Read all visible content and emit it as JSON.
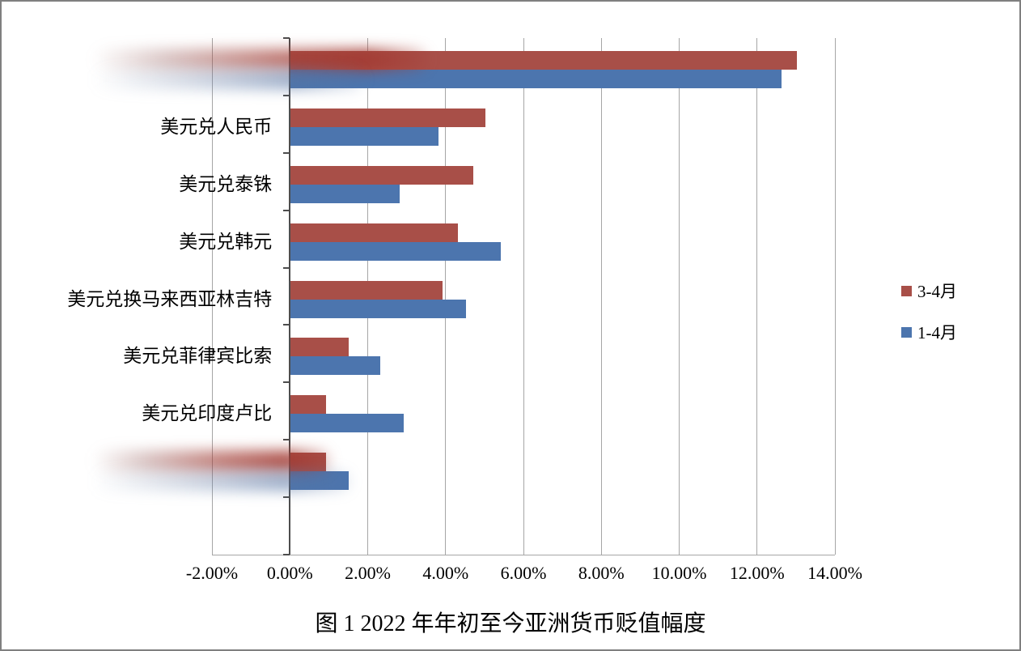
{
  "figure": {
    "caption": "图 1 2022 年年初至今亚洲货币贬值幅度"
  },
  "chart_data": {
    "type": "bar",
    "orientation": "horizontal",
    "title": "图 1 2022 年年初至今亚洲货币贬值幅度",
    "categories": [
      "",
      "美元兑人民币",
      "美元兑泰铢",
      "美元兑韩元",
      "美元兑换马来西亚林吉特",
      "美元兑菲律宾比索",
      "美元兑印度卢比",
      ""
    ],
    "redacted_rows": [
      0,
      7
    ],
    "series": [
      {
        "name": "3-4月",
        "color": "#a84f48",
        "values": [
          13.0,
          5.0,
          4.7,
          4.3,
          3.9,
          1.5,
          0.9,
          0.9
        ]
      },
      {
        "name": "1-4月",
        "color": "#4c75ae",
        "values": [
          12.6,
          3.8,
          2.8,
          5.4,
          4.5,
          2.3,
          2.9,
          1.5
        ]
      }
    ],
    "x_ticks": [
      "-2.00%",
      "0.00%",
      "2.00%",
      "4.00%",
      "6.00%",
      "8.00%",
      "10.00%",
      "12.00%",
      "14.00%"
    ],
    "x_min": -2,
    "x_max": 14,
    "unit": "%",
    "grid": true,
    "legend_position": "right"
  }
}
